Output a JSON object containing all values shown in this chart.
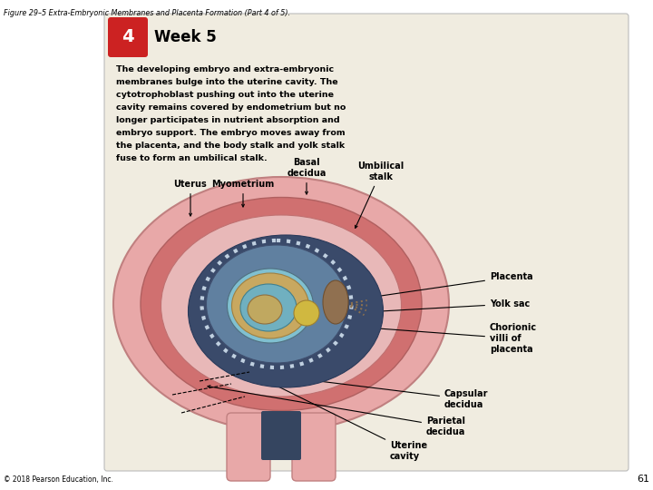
{
  "figure_title": "Figure 29–5 Extra-Embryonic Membranes and Placenta Formation (Part 4 of 5).",
  "step_number": "4",
  "step_title": "Week 5",
  "desc_lines": [
    "The developing embryo and extra-embryonic",
    "membranes bulge into the uterine cavity. The",
    "cytotrophoblast pushing out into the uterine",
    "cavity remains covered by endometrium but no",
    "longer participates in nutrient absorption and",
    "embryo support. The embryo moves away from",
    "the placenta, and the body stalk and yolk stalk",
    "fuse to form an umbilical stalk."
  ],
  "copyright": "© 2018 Pearson Education, Inc.",
  "page_number": "61",
  "panel_bg": "#f0ece0",
  "step_bg_color": "#cc2222",
  "step_text_color": "#ffffff",
  "color_outer_uterus": "#e8a8a8",
  "color_myometrium": "#d07070",
  "color_endometrium": "#e8b8b8",
  "color_cavity": "#3a4a6a",
  "color_chorionic_sac": "#6080a0",
  "color_amnion": "#80c0d0",
  "color_embryo": "#c0a860",
  "color_placenta": "#907050",
  "color_yolk": "#d0b840"
}
